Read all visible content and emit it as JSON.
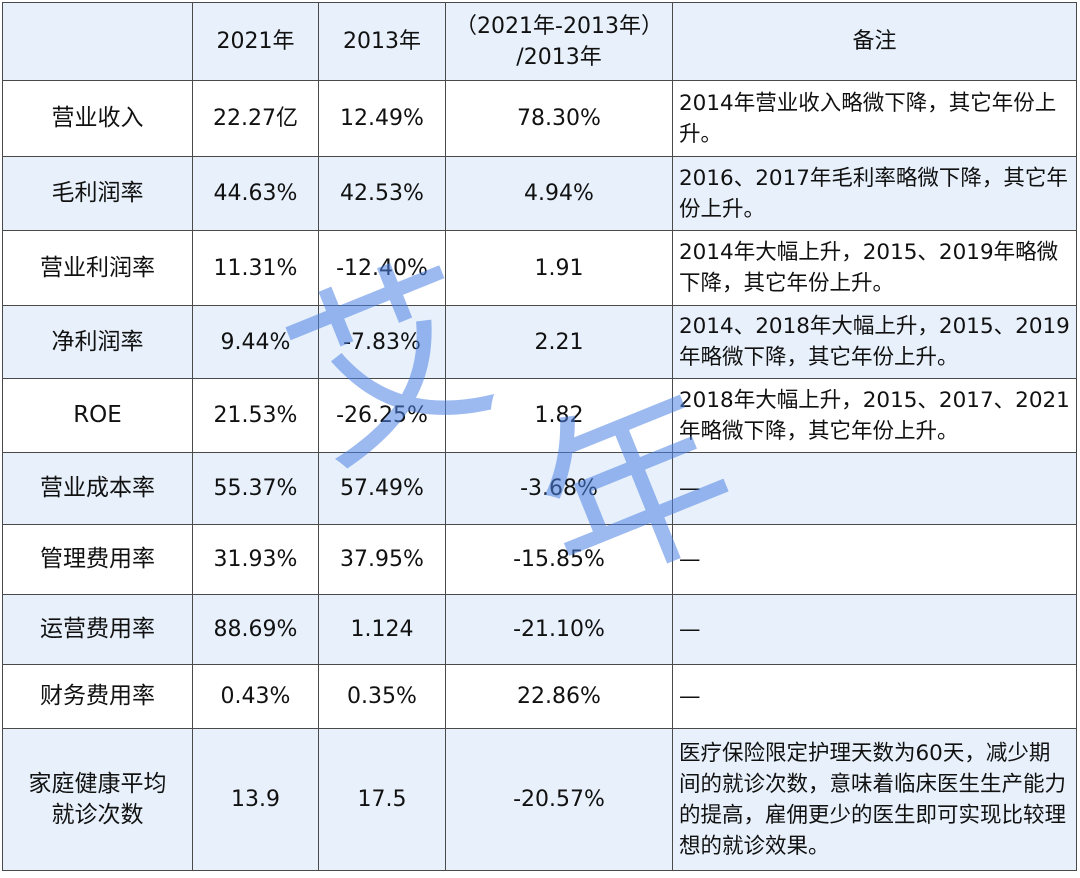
{
  "header": {
    "blank": "",
    "col_2021": "2021年",
    "col_2013": "2013年",
    "col_change_line1": "（2021年-2013年）",
    "col_change_line2": "/2013年",
    "col_note": "备注"
  },
  "rows": [
    {
      "label": "营业收入",
      "v2021": "22.27亿",
      "v2013": "12.49%",
      "change": "78.30%",
      "note": "2014年营业收入略微下降，其它年份上升。"
    },
    {
      "label": "毛利润率",
      "v2021": "44.63%",
      "v2013": "42.53%",
      "change": "4.94%",
      "note": "2016、2017年毛利率略微下降，其它年份上升。"
    },
    {
      "label": "营业利润率",
      "v2021": "11.31%",
      "v2013": "-12.40%",
      "change": "1.91",
      "note": "2014年大幅上升，2015、2019年略微下降，其它年份上升。"
    },
    {
      "label": "净利润率",
      "v2021": "9.44%",
      "v2013": "-7.83%",
      "change": "2.21",
      "note": "2014、2018年大幅上升，2015、2019年略微下降，其它年份上升。"
    },
    {
      "label": "ROE",
      "v2021": "21.53%",
      "v2013": "-26.25%",
      "change": "1.82",
      "note": "2018年大幅上升，2015、2017、2021年略微下降，其它年份上升。"
    },
    {
      "label": "营业成本率",
      "v2021": "55.37%",
      "v2013": "57.49%",
      "change": "-3.68%",
      "note": "—"
    },
    {
      "label": "管理费用率",
      "v2021": "31.93%",
      "v2013": "37.95%",
      "change": "-15.85%",
      "note": "—"
    },
    {
      "label": "运营费用率",
      "v2021": "88.69%",
      "v2013": "1.124",
      "change": "-21.10%",
      "note": "—"
    },
    {
      "label": "财务费用率",
      "v2021": "0.43%",
      "v2013": "0.35%",
      "change": "22.86%",
      "note": "—"
    },
    {
      "label": "家庭健康平均就诊次数",
      "v2021": "13.9",
      "v2013": "17.5",
      "change": "-20.57%",
      "note": "医疗保险限定护理天数为60天，减少期间的就诊次数，意味着临床医生生产能力的提高，雇佣更少的医生即可实现比较理想的就诊效果。"
    }
  ],
  "watermark": {
    "char1": "艾",
    "char2": "年",
    "color": "#4c82e4"
  }
}
